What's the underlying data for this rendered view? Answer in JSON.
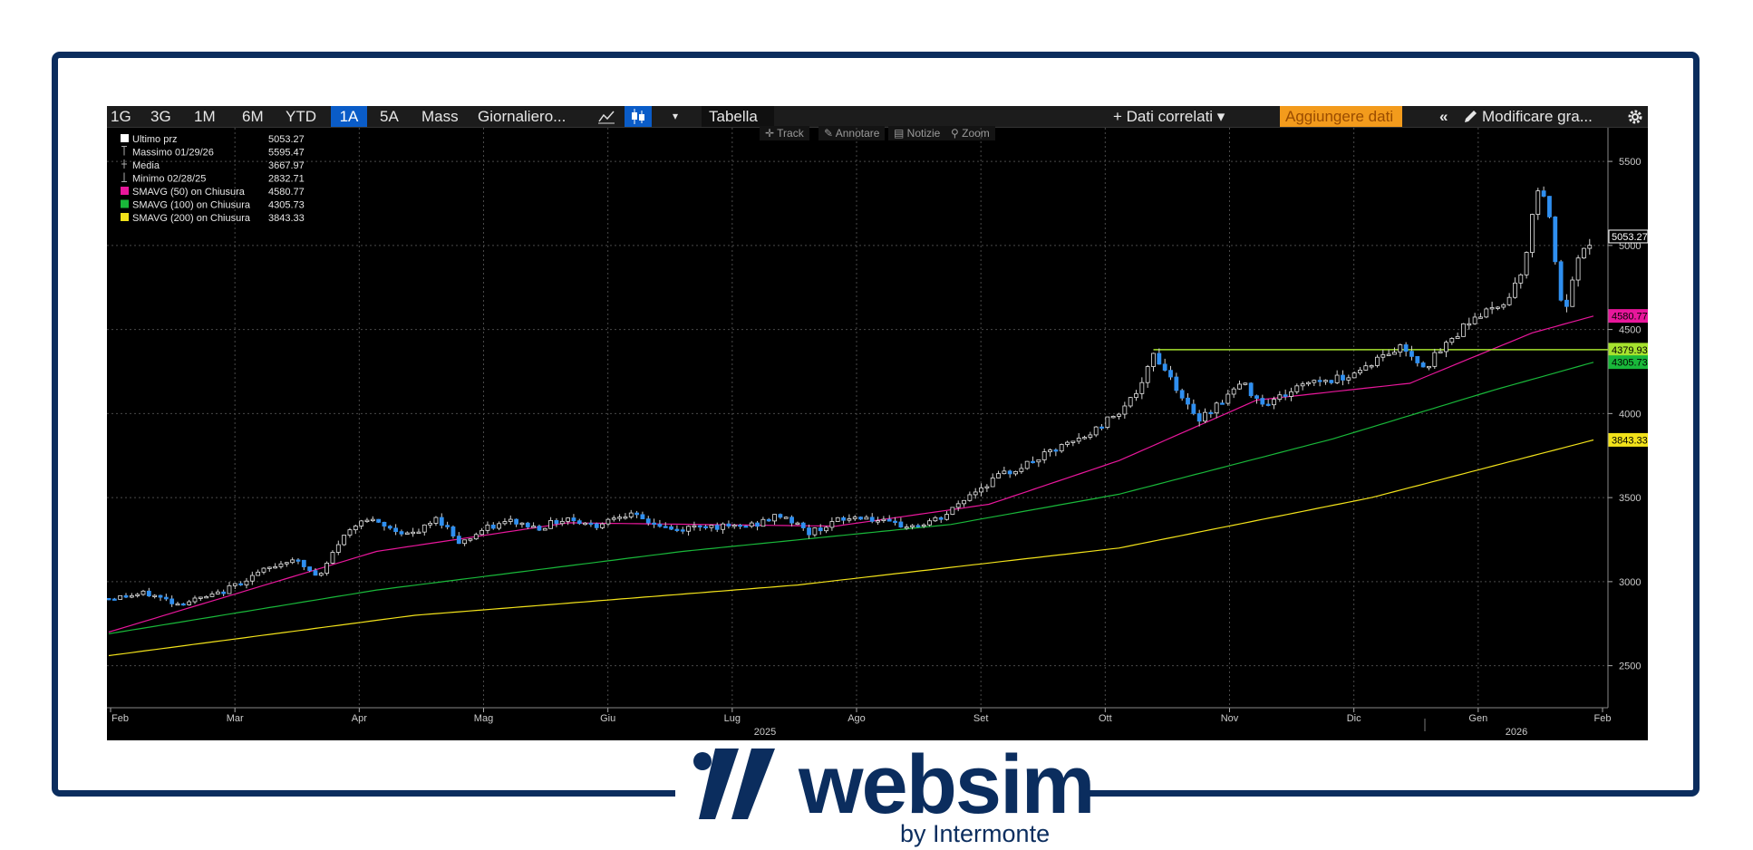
{
  "toolbar": {
    "ranges": [
      "1G",
      "3G",
      "1M",
      "6M",
      "YTD",
      "1A",
      "5A"
    ],
    "selected_range": "1A",
    "mass": "Mass",
    "frequency": "Giornaliero...",
    "table": "Tabella",
    "related": "+ Dati correlati ▾",
    "add_data": "Aggiungere dati",
    "edit_chart": "Modificare gra...",
    "collapse": "«",
    "dropdown": "▾",
    "icons": [
      "line-chart-icon",
      "candlestick-icon",
      "settings-gear-icon",
      "pencil-icon"
    ]
  },
  "subtools": [
    "Track",
    "Annotare",
    "Notizie",
    "Zoom"
  ],
  "legend": [
    {
      "label": "Ultimo prz",
      "value": "5053.27",
      "color": "#ffffff",
      "icon": "square"
    },
    {
      "label": "Massimo 01/29/26",
      "value": "5595.47",
      "color": "#aaaaaa",
      "icon": "high"
    },
    {
      "label": "Media",
      "value": "3667.97",
      "color": "#aaaaaa",
      "icon": "avg"
    },
    {
      "label": "Minimo 02/28/25",
      "value": "2832.71",
      "color": "#aaaaaa",
      "icon": "low"
    },
    {
      "label": "SMAVG (50)  on Chiusura",
      "value": "4580.77",
      "color": "#e8179b",
      "icon": "square"
    },
    {
      "label": "SMAVG (100)  on Chiusura",
      "value": "4305.73",
      "color": "#19b83a",
      "icon": "square"
    },
    {
      "label": "SMAVG (200)  on Chiusura",
      "value": "3843.33",
      "color": "#f2e21a",
      "icon": "square"
    }
  ],
  "chart_data": {
    "type": "line",
    "subtype": "candlestick",
    "y_ticks": [
      2500,
      3000,
      3500,
      4000,
      4500,
      5000,
      5500
    ],
    "ylim": [
      2250,
      5700
    ],
    "x_labels": [
      "Feb",
      "Mar",
      "Apr",
      "Mag",
      "Giu",
      "Lug",
      "Ago",
      "Set",
      "Ott",
      "Nov",
      "Dic",
      "Gen",
      "Feb"
    ],
    "year_labels": [
      "2025",
      "2026"
    ],
    "grid": true,
    "last_price": 5053.27,
    "high": 5595.47,
    "low": 2832.71,
    "average": 3667.97,
    "horizontal_line": 4379.93,
    "price_tags": [
      {
        "value": "5053.27",
        "color": "#ffffff"
      },
      {
        "value": "4580.77",
        "color": "#e8179b"
      },
      {
        "value": "4379.93",
        "color": "#a6e22e"
      },
      {
        "value": "4305.73",
        "color": "#19b83a"
      },
      {
        "value": "3843.33",
        "color": "#f2e21a"
      }
    ],
    "price_anchors": [
      [
        0,
        2900
      ],
      [
        10,
        2930
      ],
      [
        18,
        2870
      ],
      [
        28,
        2920
      ],
      [
        38,
        3040
      ],
      [
        48,
        3140
      ],
      [
        55,
        3020
      ],
      [
        60,
        3230
      ],
      [
        66,
        3380
      ],
      [
        74,
        3310
      ],
      [
        80,
        3280
      ],
      [
        86,
        3380
      ],
      [
        92,
        3230
      ],
      [
        98,
        3310
      ],
      [
        105,
        3360
      ],
      [
        112,
        3320
      ],
      [
        120,
        3380
      ],
      [
        127,
        3330
      ],
      [
        134,
        3410
      ],
      [
        142,
        3350
      ],
      [
        148,
        3300
      ],
      [
        155,
        3340
      ],
      [
        162,
        3320
      ],
      [
        169,
        3340
      ],
      [
        176,
        3400
      ],
      [
        183,
        3290
      ],
      [
        190,
        3360
      ],
      [
        197,
        3390
      ],
      [
        204,
        3340
      ],
      [
        211,
        3330
      ],
      [
        218,
        3380
      ],
      [
        225,
        3520
      ],
      [
        232,
        3620
      ],
      [
        240,
        3700
      ],
      [
        248,
        3790
      ],
      [
        256,
        3870
      ],
      [
        264,
        4020
      ],
      [
        270,
        4160
      ],
      [
        273,
        4360
      ],
      [
        278,
        4200
      ],
      [
        284,
        3960
      ],
      [
        290,
        4060
      ],
      [
        296,
        4180
      ],
      [
        302,
        4060
      ],
      [
        308,
        4120
      ],
      [
        314,
        4200
      ],
      [
        320,
        4200
      ],
      [
        326,
        4250
      ],
      [
        332,
        4330
      ],
      [
        338,
        4400
      ],
      [
        344,
        4280
      ],
      [
        350,
        4420
      ],
      [
        356,
        4570
      ],
      [
        362,
        4620
      ],
      [
        366,
        4700
      ],
      [
        370,
        4900
      ],
      [
        374,
        5420
      ],
      [
        377,
        5100
      ],
      [
        380,
        4560
      ],
      [
        384,
        4900
      ],
      [
        388,
        5053
      ]
    ],
    "sma50": [
      [
        0,
        2700
      ],
      [
        70,
        3180
      ],
      [
        120,
        3350
      ],
      [
        190,
        3330
      ],
      [
        230,
        3460
      ],
      [
        264,
        3720
      ],
      [
        300,
        4080
      ],
      [
        340,
        4180
      ],
      [
        372,
        4480
      ],
      [
        388,
        4580
      ]
    ],
    "sma100": [
      [
        0,
        2690
      ],
      [
        70,
        2950
      ],
      [
        150,
        3180
      ],
      [
        220,
        3340
      ],
      [
        264,
        3520
      ],
      [
        320,
        3850
      ],
      [
        362,
        4140
      ],
      [
        388,
        4305
      ]
    ],
    "sma200": [
      [
        0,
        2560
      ],
      [
        80,
        2800
      ],
      [
        180,
        2980
      ],
      [
        264,
        3200
      ],
      [
        330,
        3500
      ],
      [
        388,
        3843
      ]
    ]
  },
  "brand": {
    "name": "websim",
    "tagline": "by Intermonte",
    "color": "#0b2d5e"
  }
}
